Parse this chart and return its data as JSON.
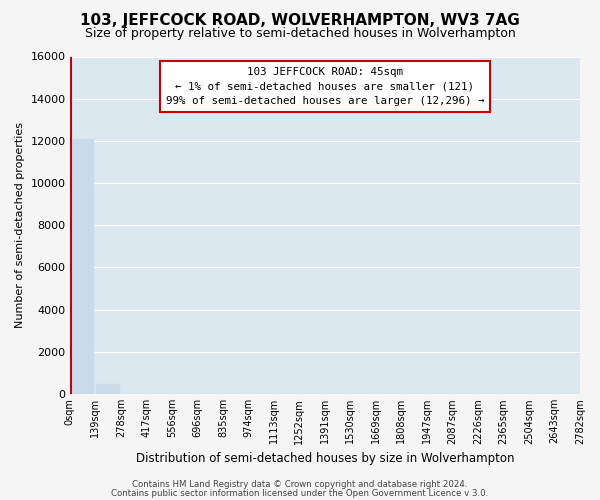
{
  "title": "103, JEFFCOCK ROAD, WOLVERHAMPTON, WV3 7AG",
  "subtitle": "Size of property relative to semi-detached houses in Wolverhampton",
  "xlabel": "Distribution of semi-detached houses by size in Wolverhampton",
  "ylabel": "Number of semi-detached properties",
  "bar_values": [
    12100,
    490,
    0,
    0,
    0,
    0,
    0,
    0,
    0,
    0,
    0,
    0,
    0,
    0,
    0,
    0,
    0,
    0,
    0,
    0
  ],
  "bar_color": "#c9daea",
  "x_tick_labels": [
    "0sqm",
    "139sqm",
    "278sqm",
    "417sqm",
    "556sqm",
    "696sqm",
    "835sqm",
    "974sqm",
    "1113sqm",
    "1252sqm",
    "1391sqm",
    "1530sqm",
    "1669sqm",
    "1808sqm",
    "1947sqm",
    "2087sqm",
    "2226sqm",
    "2365sqm",
    "2504sqm",
    "2643sqm",
    "2782sqm"
  ],
  "ylim": [
    0,
    16000
  ],
  "yticks": [
    0,
    2000,
    4000,
    6000,
    8000,
    10000,
    12000,
    14000,
    16000
  ],
  "annotation_line1": "103 JEFFCOCK ROAD: 45sqm",
  "annotation_line2": "← 1% of semi-detached houses are smaller (121)",
  "annotation_line3": "99% of semi-detached houses are larger (12,296) →",
  "footer_line1": "Contains HM Land Registry data © Crown copyright and database right 2024.",
  "footer_line2": "Contains public sector information licensed under the Open Government Licence v 3.0.",
  "bg_color": "#f5f5f5",
  "plot_bg_color": "#dce8f0",
  "grid_color": "#ffffff",
  "red_line_color": "#cc0000",
  "title_fontsize": 11,
  "subtitle_fontsize": 9
}
